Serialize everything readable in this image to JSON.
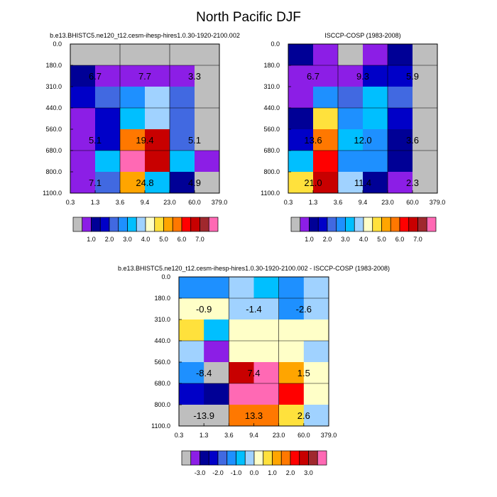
{
  "figure": {
    "title": "North Pacific DJF"
  },
  "chart_data": [
    {
      "type": "heatmap",
      "title": "b.e13.BHISTC5.ne120_t12.cesm-ihesp-hires1.0.30-1920-2100.002",
      "x_ticks": [
        "0.3",
        "1.3",
        "3.6",
        "9.4",
        "23.0",
        "60.0",
        "379.0"
      ],
      "y_ticks": [
        "0.0",
        "180.0",
        "310.0",
        "440.0",
        "560.0",
        "680.0",
        "800.0",
        "1100.0"
      ],
      "grid_lines": true,
      "cell_colors": [
        [
          "#bebebe",
          "#bebebe",
          "#bebebe",
          "#bebebe",
          "#bebebe",
          "#bebebe"
        ],
        [
          "#000096",
          "#8c1ee6",
          "#8c1ee6",
          "#8c1ee6",
          "#8c1ee6",
          "#bebebe"
        ],
        [
          "#0000c8",
          "#4169e1",
          "#1e90ff",
          "#a0d2ff",
          "#4169e1",
          "#bebebe"
        ],
        [
          "#8c1ee6",
          "#0000c8",
          "#00bfff",
          "#a0d2ff",
          "#4169e1",
          "#bebebe"
        ],
        [
          "#8c1ee6",
          "#0000c8",
          "#ff7800",
          "#c80000",
          "#4169e1",
          "#bebebe"
        ],
        [
          "#8c1ee6",
          "#00bfff",
          "#ff69b4",
          "#c80000",
          "#00bfff",
          "#8c1ee6"
        ],
        [
          "#8c1ee6",
          "#4169e1",
          "#ffa500",
          "#00bfff",
          "#000096",
          "#bebebe"
        ]
      ],
      "block_labels": [
        {
          "value": "6.7",
          "col": 0.5,
          "row": 1.5
        },
        {
          "value": "7.7",
          "col": 2.5,
          "row": 1.5
        },
        {
          "value": "3.3",
          "col": 4.5,
          "row": 1.5
        },
        {
          "value": "5.1",
          "col": 0.5,
          "row": 4.5
        },
        {
          "value": "19.4",
          "col": 2.5,
          "row": 4.5
        },
        {
          "value": "5.1",
          "col": 4.5,
          "row": 4.5
        },
        {
          "value": "7.1",
          "col": 0.5,
          "row": 6.5
        },
        {
          "value": "24.8",
          "col": 2.5,
          "row": 6.5
        },
        {
          "value": "4.9",
          "col": 4.5,
          "row": 6.5
        }
      ]
    },
    {
      "type": "heatmap",
      "title": "ISCCP-COSP (1983-2008)",
      "x_ticks": [
        "0.3",
        "1.3",
        "3.6",
        "9.4",
        "23.0",
        "60.0",
        "379.0"
      ],
      "y_ticks": [
        "0.0",
        "180.0",
        "310.0",
        "440.0",
        "560.0",
        "680.0",
        "800.0",
        "1100.0"
      ],
      "grid_lines": true,
      "cell_colors": [
        [
          "#000096",
          "#8c1ee6",
          "#bebebe",
          "#8c1ee6",
          "#000096",
          "#bebebe"
        ],
        [
          "#8c1ee6",
          "#8c1ee6",
          "#8c1ee6",
          "#0000c8",
          "#0000c8",
          "#bebebe"
        ],
        [
          "#8c1ee6",
          "#1e90ff",
          "#4169e1",
          "#00bfff",
          "#4169e1",
          "#bebebe"
        ],
        [
          "#000096",
          "#ffe13c",
          "#1e90ff",
          "#00bfff",
          "#0000c8",
          "#bebebe"
        ],
        [
          "#0000c8",
          "#ff7800",
          "#00bfff",
          "#1e90ff",
          "#000096",
          "#bebebe"
        ],
        [
          "#00bfff",
          "#ff0000",
          "#1e90ff",
          "#1e90ff",
          "#000096",
          "#bebebe"
        ],
        [
          "#ffe13c",
          "#c80000",
          "#a0d2ff",
          "#000096",
          "#8c1ee6",
          "#bebebe"
        ]
      ],
      "block_labels": [
        {
          "value": "6.7",
          "col": 0.5,
          "row": 1.5
        },
        {
          "value": "9.3",
          "col": 2.5,
          "row": 1.5
        },
        {
          "value": "5.9",
          "col": 4.5,
          "row": 1.5
        },
        {
          "value": "13.6",
          "col": 0.5,
          "row": 4.5
        },
        {
          "value": "12.0",
          "col": 2.5,
          "row": 4.5
        },
        {
          "value": "3.6",
          "col": 4.5,
          "row": 4.5
        },
        {
          "value": "21.0",
          "col": 0.5,
          "row": 6.5
        },
        {
          "value": "11.4",
          "col": 2.5,
          "row": 6.5
        },
        {
          "value": "2.3",
          "col": 4.5,
          "row": 6.5
        }
      ]
    },
    {
      "type": "heatmap",
      "title": "b.e13.BHISTC5.ne120_t12.cesm-ihesp-hires1.0.30-1920-2100.002 - ISCCP-COSP (1983-2008)",
      "x_ticks": [
        "0.3",
        "1.3",
        "3.6",
        "9.4",
        "23.0",
        "60.0",
        "379.0"
      ],
      "y_ticks": [
        "0.0",
        "180.0",
        "310.0",
        "440.0",
        "560.0",
        "680.0",
        "800.0",
        "1100.0"
      ],
      "grid_lines": true,
      "cell_colors": [
        [
          "#1e90ff",
          "#1e90ff",
          "#a0d2ff",
          "#00bfff",
          "#1e90ff",
          "#a0d2ff"
        ],
        [
          "#ffffc8",
          "#ffffc8",
          "#a0d2ff",
          "#a0d2ff",
          "#1e90ff",
          "#a0d2ff"
        ],
        [
          "#ffe13c",
          "#00bfff",
          "#ffffc8",
          "#ffffc8",
          "#ffffc8",
          "#ffffc8"
        ],
        [
          "#a0d2ff",
          "#8c1ee6",
          "#ffffc8",
          "#ffffc8",
          "#ffffc8",
          "#a0d2ff"
        ],
        [
          "#1e90ff",
          "#bebebe",
          "#c80000",
          "#ff69b4",
          "#ffa500",
          "#ffffc8"
        ],
        [
          "#0000c8",
          "#000096",
          "#ff69b4",
          "#ff69b4",
          "#ff0000",
          "#ffffc8"
        ],
        [
          "#bebebe",
          "#bebebe",
          "#ff7800",
          "#ff7800",
          "#ffe13c",
          "#a0d2ff"
        ]
      ],
      "block_labels": [
        {
          "value": "-0.9",
          "col": 0.5,
          "row": 1.5
        },
        {
          "value": "-1.4",
          "col": 2.5,
          "row": 1.5
        },
        {
          "value": "-2.6",
          "col": 4.5,
          "row": 1.5
        },
        {
          "value": "-8.4",
          "col": 0.5,
          "row": 4.5
        },
        {
          "value": "7.4",
          "col": 2.5,
          "row": 4.5
        },
        {
          "value": "1.5",
          "col": 4.5,
          "row": 4.5
        },
        {
          "value": "-13.9",
          "col": 0.5,
          "row": 6.5
        },
        {
          "value": "13.3",
          "col": 2.5,
          "row": 6.5
        },
        {
          "value": "2.6",
          "col": 4.5,
          "row": 6.5
        }
      ]
    }
  ],
  "colorbars": [
    {
      "colors": [
        "#bebebe",
        "#8c1ee6",
        "#000096",
        "#0000c8",
        "#4169e1",
        "#1e90ff",
        "#00bfff",
        "#a0d2ff",
        "#ffffc8",
        "#ffe13c",
        "#ffa500",
        "#ff7800",
        "#ff0000",
        "#c80000",
        "#a0282d",
        "#ff69b4"
      ],
      "labels": [
        {
          "text": "1.0",
          "boundary": 2
        },
        {
          "text": "2.0",
          "boundary": 4
        },
        {
          "text": "3.0",
          "boundary": 6
        },
        {
          "text": "4.0",
          "boundary": 8
        },
        {
          "text": "5.0",
          "boundary": 10
        },
        {
          "text": "6.0",
          "boundary": 12
        },
        {
          "text": "7.0",
          "boundary": 14
        }
      ]
    },
    {
      "colors": [
        "#bebebe",
        "#8c1ee6",
        "#000096",
        "#0000c8",
        "#4169e1",
        "#1e90ff",
        "#00bfff",
        "#a0d2ff",
        "#ffffc8",
        "#ffe13c",
        "#ffa500",
        "#ff7800",
        "#ff0000",
        "#c80000",
        "#a0282d",
        "#ff69b4"
      ],
      "labels": [
        {
          "text": "1.0",
          "boundary": 2
        },
        {
          "text": "2.0",
          "boundary": 4
        },
        {
          "text": "3.0",
          "boundary": 6
        },
        {
          "text": "4.0",
          "boundary": 8
        },
        {
          "text": "5.0",
          "boundary": 10
        },
        {
          "text": "6.0",
          "boundary": 12
        },
        {
          "text": "7.0",
          "boundary": 14
        }
      ]
    },
    {
      "colors": [
        "#bebebe",
        "#8c1ee6",
        "#000096",
        "#0000c8",
        "#4169e1",
        "#1e90ff",
        "#00bfff",
        "#a0d2ff",
        "#ffffc8",
        "#ffe13c",
        "#ffa500",
        "#ff7800",
        "#ff0000",
        "#c80000",
        "#a0282d",
        "#ff69b4"
      ],
      "labels": [
        {
          "text": "-3.0",
          "boundary": 2
        },
        {
          "text": "-2.0",
          "boundary": 4
        },
        {
          "text": "-1.0",
          "boundary": 6
        },
        {
          "text": "0.0",
          "boundary": 8
        },
        {
          "text": "1.0",
          "boundary": 10
        },
        {
          "text": "2.0",
          "boundary": 12
        },
        {
          "text": "3.0",
          "boundary": 14
        }
      ]
    }
  ]
}
